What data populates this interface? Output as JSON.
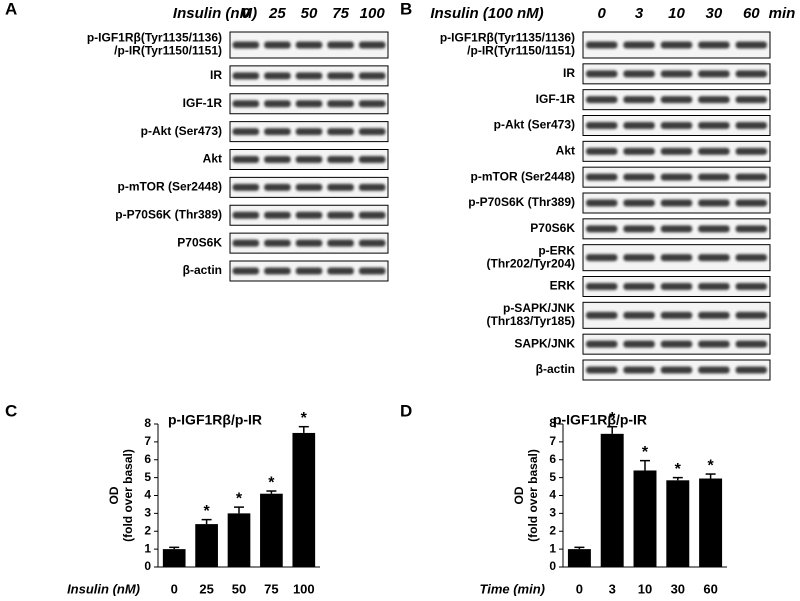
{
  "panels": [
    {
      "label": "A",
      "condition": "Insulin (nM)",
      "lanes": [
        "0",
        "25",
        "50",
        "75",
        "100"
      ],
      "rows": [
        [
          "p-IGF1Rβ(Tyr1135/1136)",
          "/p-IR(Tyr1150/1151)"
        ],
        [
          "IR"
        ],
        [
          "IGF-1R"
        ],
        [
          "p-Akt (Ser473)"
        ],
        [
          "Akt"
        ],
        [
          "p-mTOR (Ser2448)"
        ],
        [
          "p-P70S6K (Thr389)"
        ],
        [
          "P70S6K"
        ],
        [
          "β-actin"
        ]
      ]
    },
    {
      "label": "B",
      "condition": "Insulin (100 nM)",
      "lanes": [
        "0",
        "3",
        "10",
        "30",
        "60"
      ],
      "unit": "min",
      "rows": [
        [
          "p-IGF1Rβ(Tyr1135/1136)",
          "/p-IR(Tyr1150/1151)"
        ],
        [
          "IR"
        ],
        [
          "IGF-1R"
        ],
        [
          "p-Akt (Ser473)"
        ],
        [
          "Akt"
        ],
        [
          "p-mTOR (Ser2448)"
        ],
        [
          "p-P70S6K (Thr389)"
        ],
        [
          "P70S6K"
        ],
        [
          "p-ERK",
          "(Thr202/Tyr204)"
        ],
        [
          "ERK"
        ],
        [
          "p-SAPK/JNK",
          "(Thr183/Tyr185)"
        ],
        [
          "SAPK/JNK"
        ],
        [
          "β-actin"
        ]
      ]
    }
  ],
  "chart_data": [
    {
      "type": "bar",
      "label": "C",
      "title": "p-IGF1Rβ/p-IR",
      "y_label": [
        "OD",
        "(fold over basal)"
      ],
      "x_label": "Insulin (nM)",
      "categories": [
        "0",
        "25",
        "50",
        "75",
        "100"
      ],
      "values": [
        1.0,
        2.4,
        3.0,
        4.1,
        7.5
      ],
      "errors": [
        0.1,
        0.25,
        0.35,
        0.15,
        0.35
      ],
      "annotations": [
        null,
        "*",
        "*",
        "*",
        "*"
      ],
      "color": "#000000",
      "ylim": [
        0,
        8
      ],
      "yticks": [
        0,
        1,
        2,
        3,
        4,
        5,
        6,
        7,
        8
      ]
    },
    {
      "type": "bar",
      "label": "D",
      "title": "p-IGF1Rβ/p-IR",
      "y_label": [
        "OD",
        "(fold over basal)"
      ],
      "x_label": "Time (min)",
      "categories": [
        "0",
        "3",
        "10",
        "30",
        "60"
      ],
      "values": [
        1.0,
        7.45,
        5.4,
        4.85,
        4.95
      ],
      "errors": [
        0.1,
        0.4,
        0.55,
        0.15,
        0.25
      ],
      "annotations": [
        null,
        "*",
        "*",
        "*",
        "*"
      ],
      "color": "#000000",
      "ylim": [
        0,
        8
      ],
      "yticks": [
        0,
        1,
        2,
        3,
        4,
        5,
        6,
        7,
        8
      ]
    }
  ]
}
